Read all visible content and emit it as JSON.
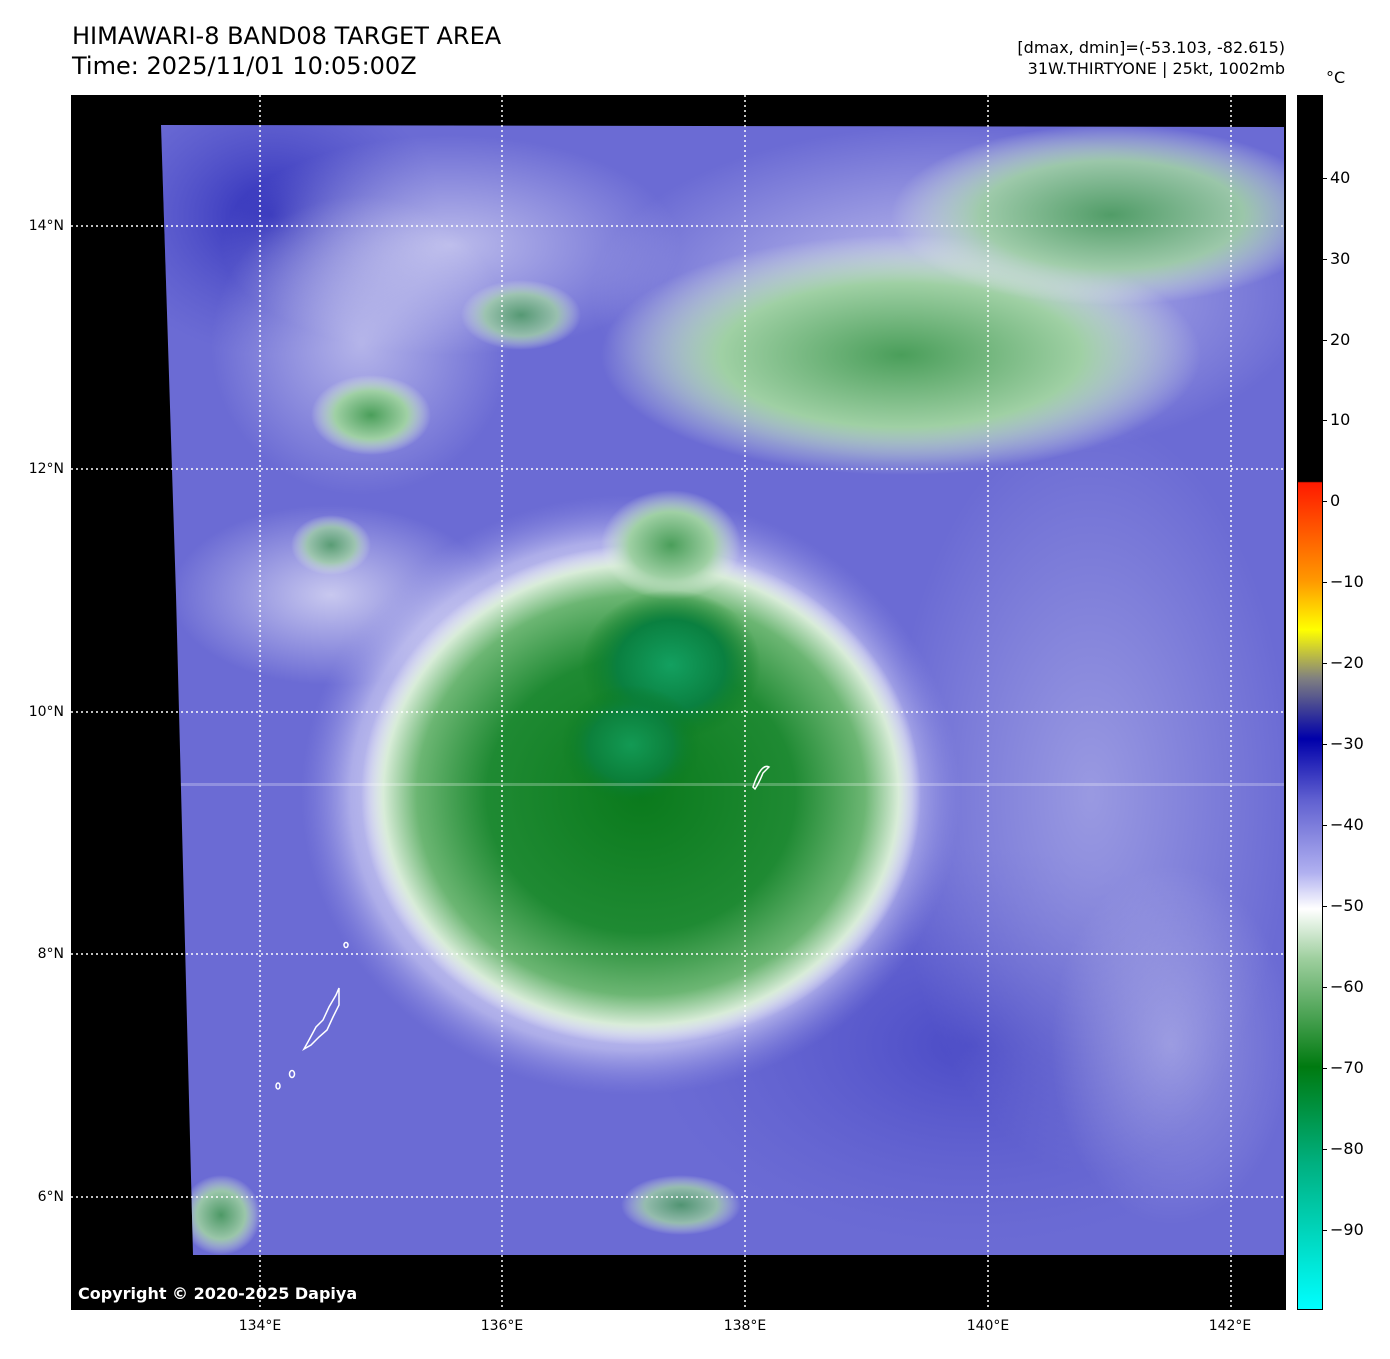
{
  "header": {
    "title": "HIMAWARI-8 BAND08 TARGET AREA",
    "time": "Time: 2025/11/01 10:05:00Z",
    "range": "[dmax, dmin]=(-53.103, -82.615)",
    "storm": "31W.THIRTYONE | 25kt, 1002mb"
  },
  "axes": {
    "lat_labels": [
      "14°N",
      "12°N",
      "10°N",
      "8°N",
      "6°N"
    ],
    "lon_labels": [
      "134°E",
      "136°E",
      "138°E",
      "140°E",
      "142°E"
    ]
  },
  "colorbar": {
    "unit": "°C",
    "labels": [
      "40",
      "30",
      "20",
      "10",
      "0",
      "−10",
      "−20",
      "−30",
      "−40",
      "−50",
      "−60",
      "−70",
      "−80",
      "−90"
    ],
    "colors": {
      "warm_black": "#000000",
      "red": "#ff1a00",
      "orange": "#ff9900",
      "yellow": "#ffff00",
      "gray": "#808080",
      "dark_blue": "#0000aa",
      "blue": "#6060d0",
      "lavender": "#b0b0f0",
      "white": "#ffffff",
      "light_green": "#a0d0a0",
      "green": "#007a10",
      "teal": "#00b080",
      "cyan": "#00ffff"
    }
  },
  "copyright": "Copyright © 2020-2025 Dapiya"
}
